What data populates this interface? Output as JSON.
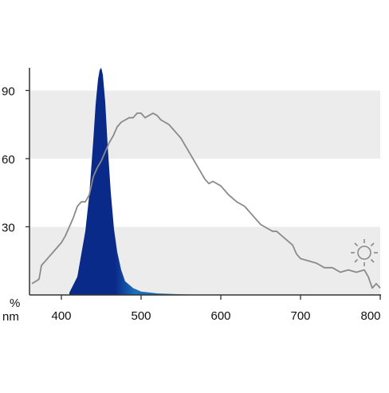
{
  "chart_data": {
    "type": "area",
    "xlabel": "nm",
    "ylabel": "%",
    "xlim": [
      360,
      800
    ],
    "ylim": [
      0,
      100
    ],
    "x_ticks": [
      400,
      500,
      600,
      700,
      800
    ],
    "y_ticks": [
      30,
      60,
      90
    ],
    "shaded_bands": [
      [
        0,
        30
      ],
      [
        60,
        90
      ]
    ],
    "band_color": "#ececec",
    "grid": false,
    "legend": "none",
    "series": [
      {
        "kind": "filled-spectrum",
        "color_start": "#0a2a8a",
        "color_mid": "#1a6fb8",
        "color_end": "#8fc62a",
        "x": [
          410,
          420,
          430,
          435,
          440,
          443,
          446,
          448,
          450,
          452,
          455,
          458,
          462,
          466,
          470,
          475,
          480,
          490,
          500,
          520,
          550,
          580
        ],
        "y": [
          1,
          8,
          28,
          44,
          68,
          84,
          95,
          99,
          100,
          97,
          85,
          66,
          45,
          29,
          19,
          11,
          6,
          3,
          1.5,
          0.7,
          0.3,
          0
        ]
      },
      {
        "kind": "line",
        "color": "#8a8a8a",
        "icon": "sun-icon",
        "x": [
          363,
          368,
          372,
          375,
          380,
          390,
          400,
          405,
          410,
          415,
          420,
          425,
          430,
          435,
          440,
          445,
          450,
          455,
          460,
          465,
          470,
          475,
          480,
          485,
          490,
          495,
          500,
          505,
          510,
          515,
          520,
          525,
          530,
          535,
          540,
          545,
          550,
          555,
          560,
          565,
          570,
          575,
          580,
          585,
          590,
          600,
          610,
          620,
          630,
          640,
          650,
          660,
          665,
          670,
          680,
          690,
          695,
          700,
          710,
          720,
          730,
          740,
          750,
          760,
          770,
          780,
          785,
          790,
          795,
          800
        ],
        "y": [
          5,
          6,
          7,
          13,
          15,
          19,
          23,
          26,
          30,
          34,
          39,
          41,
          41,
          44,
          52,
          56,
          59,
          63,
          67,
          70,
          74,
          76,
          77,
          78,
          78,
          80,
          80,
          78,
          79,
          80,
          79,
          77,
          76,
          75,
          73,
          71,
          69,
          66,
          63,
          60,
          57,
          54,
          51,
          49,
          50,
          48,
          44,
          41,
          39,
          35,
          31,
          29,
          28,
          28,
          25,
          22,
          18,
          16,
          15,
          14,
          12,
          12,
          10,
          11,
          10,
          11,
          8,
          3,
          5,
          3
        ]
      }
    ]
  }
}
